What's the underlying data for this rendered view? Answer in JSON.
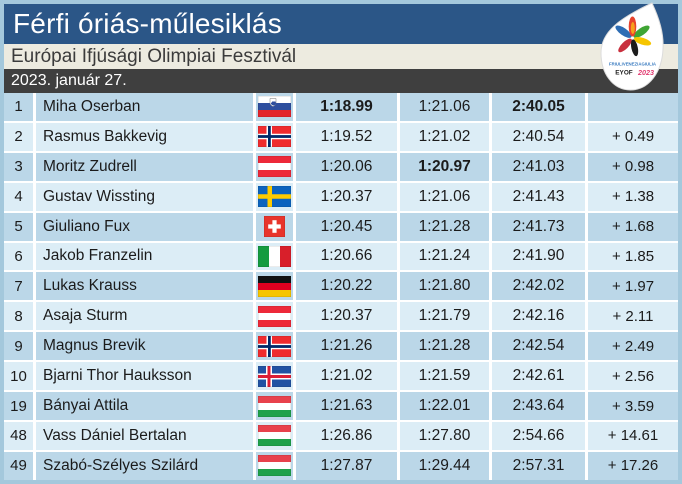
{
  "header": {
    "title": "Férfi óriás-műlesiklás",
    "subtitle": "Európai Ifjúsági Olimpiai Fesztivál",
    "date": "2023. január 27.",
    "logo": {
      "region": "FRIULIVENEZIAGIULIA",
      "eyof": "EYOF",
      "year": "2023"
    }
  },
  "colors": {
    "title_band": "#2B5687",
    "subtitle_band": "#EDEBE0",
    "date_band": "#3F3F3F",
    "row_odd": "#BBD7E8",
    "row_even": "#DCEDF6",
    "frame": "#A4C8DC"
  },
  "table": {
    "rows": [
      {
        "rank": "1",
        "name": "Miha Oserban",
        "country": "slovenia",
        "run1": "1:18.99",
        "run2": "1:21.06",
        "total": "2:40.05",
        "gap": "",
        "run1_bold": true,
        "total_bold": true
      },
      {
        "rank": "2",
        "name": "Rasmus Bakkevig",
        "country": "norway",
        "run1": "1:19.52",
        "run2": "1:21.02",
        "total": "2:40.54",
        "gap": "+ 0.49"
      },
      {
        "rank": "3",
        "name": "Moritz Zudrell",
        "country": "austria",
        "run1": "1:20.06",
        "run2": "1:20.97",
        "total": "2:41.03",
        "gap": "+ 0.98",
        "run2_bold": true
      },
      {
        "rank": "4",
        "name": "Gustav Wissting",
        "country": "sweden",
        "run1": "1:20.37",
        "run2": "1:21.06",
        "total": "2:41.43",
        "gap": "+ 1.38"
      },
      {
        "rank": "5",
        "name": "Giuliano Fux",
        "country": "switzerland",
        "run1": "1:20.45",
        "run2": "1:21.28",
        "total": "2:41.73",
        "gap": "+ 1.68"
      },
      {
        "rank": "6",
        "name": "Jakob Franzelin",
        "country": "italy",
        "run1": "1:20.66",
        "run2": "1:21.24",
        "total": "2:41.90",
        "gap": "+ 1.85"
      },
      {
        "rank": "7",
        "name": "Lukas Krauss",
        "country": "germany",
        "run1": "1:20.22",
        "run2": "1:21.80",
        "total": "2:42.02",
        "gap": "+ 1.97"
      },
      {
        "rank": "8",
        "name": "Asaja Sturm",
        "country": "austria",
        "run1": "1:20.37",
        "run2": "1:21.79",
        "total": "2:42.16",
        "gap": "+ 2.11"
      },
      {
        "rank": "9",
        "name": "Magnus Brevik",
        "country": "norway",
        "run1": "1:21.26",
        "run2": "1:21.28",
        "total": "2:42.54",
        "gap": "+ 2.49"
      },
      {
        "rank": "10",
        "name": "Bjarni Thor Hauksson",
        "country": "iceland",
        "run1": "1:21.02",
        "run2": "1:21.59",
        "total": "2:42.61",
        "gap": "+ 2.56"
      },
      {
        "rank": "19",
        "name": "Bányai Attila",
        "country": "hungary",
        "run1": "1:21.63",
        "run2": "1:22.01",
        "total": "2:43.64",
        "gap": "+ 3.59"
      },
      {
        "rank": "48",
        "name": "Vass Dániel Bertalan",
        "country": "hungary",
        "run1": "1:26.86",
        "run2": "1:27.80",
        "total": "2:54.66",
        "gap": "+ 14.61"
      },
      {
        "rank": "49",
        "name": "Szabó-Szélyes Szilárd",
        "country": "hungary",
        "run1": "1:27.87",
        "run2": "1:29.44",
        "total": "2:57.31",
        "gap": "+ 17.26"
      }
    ]
  }
}
